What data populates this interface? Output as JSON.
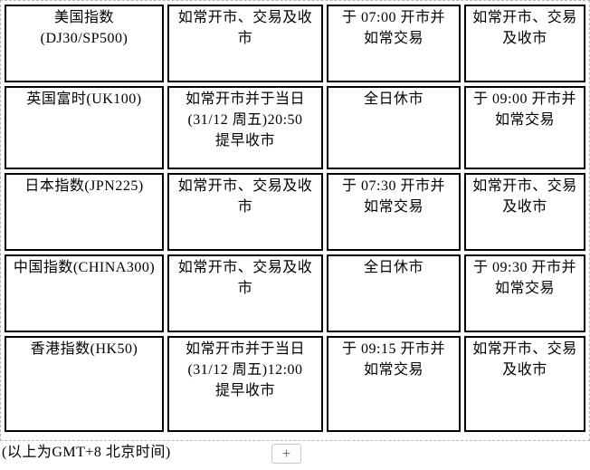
{
  "table": {
    "rows": [
      [
        "美国指数\n(DJ30/SP500)",
        "如常开市、交易及收\n市",
        "于 07:00 开市并\n如常交易",
        "如常开市、交易\n及收市"
      ],
      [
        "英国富时(UK100)",
        "如常开市并于当日\n(31/12 周五)20:50\n提早收市",
        "全日休市",
        "于 09:00 开市并\n如常交易"
      ],
      [
        "日本指数(JPN225)",
        "如常开市、交易及收\n市",
        "于 07:30 开市并\n如常交易",
        "如常开市、交易\n及收市"
      ],
      [
        "中国指数(CHINA300)",
        "如常开市、交易及收\n市",
        "全日休市",
        "于 09:30 开市并\n如常交易"
      ],
      [
        "香港指数(HK50)",
        "如常开市并于当日\n(31/12 周五)12:00\n提早收市",
        "于 09:15 开市并\n如常交易",
        "如常开市、交易\n及收市"
      ]
    ]
  },
  "footer": {
    "timezone_note": "(以上为GMT+8 北京时间)",
    "add_button_label": "+"
  },
  "colors": {
    "cell_border": "#000000",
    "region_outline": "#b5b5b5",
    "button_border": "#c9c9c9",
    "button_glyph": "#7a7a7a"
  }
}
